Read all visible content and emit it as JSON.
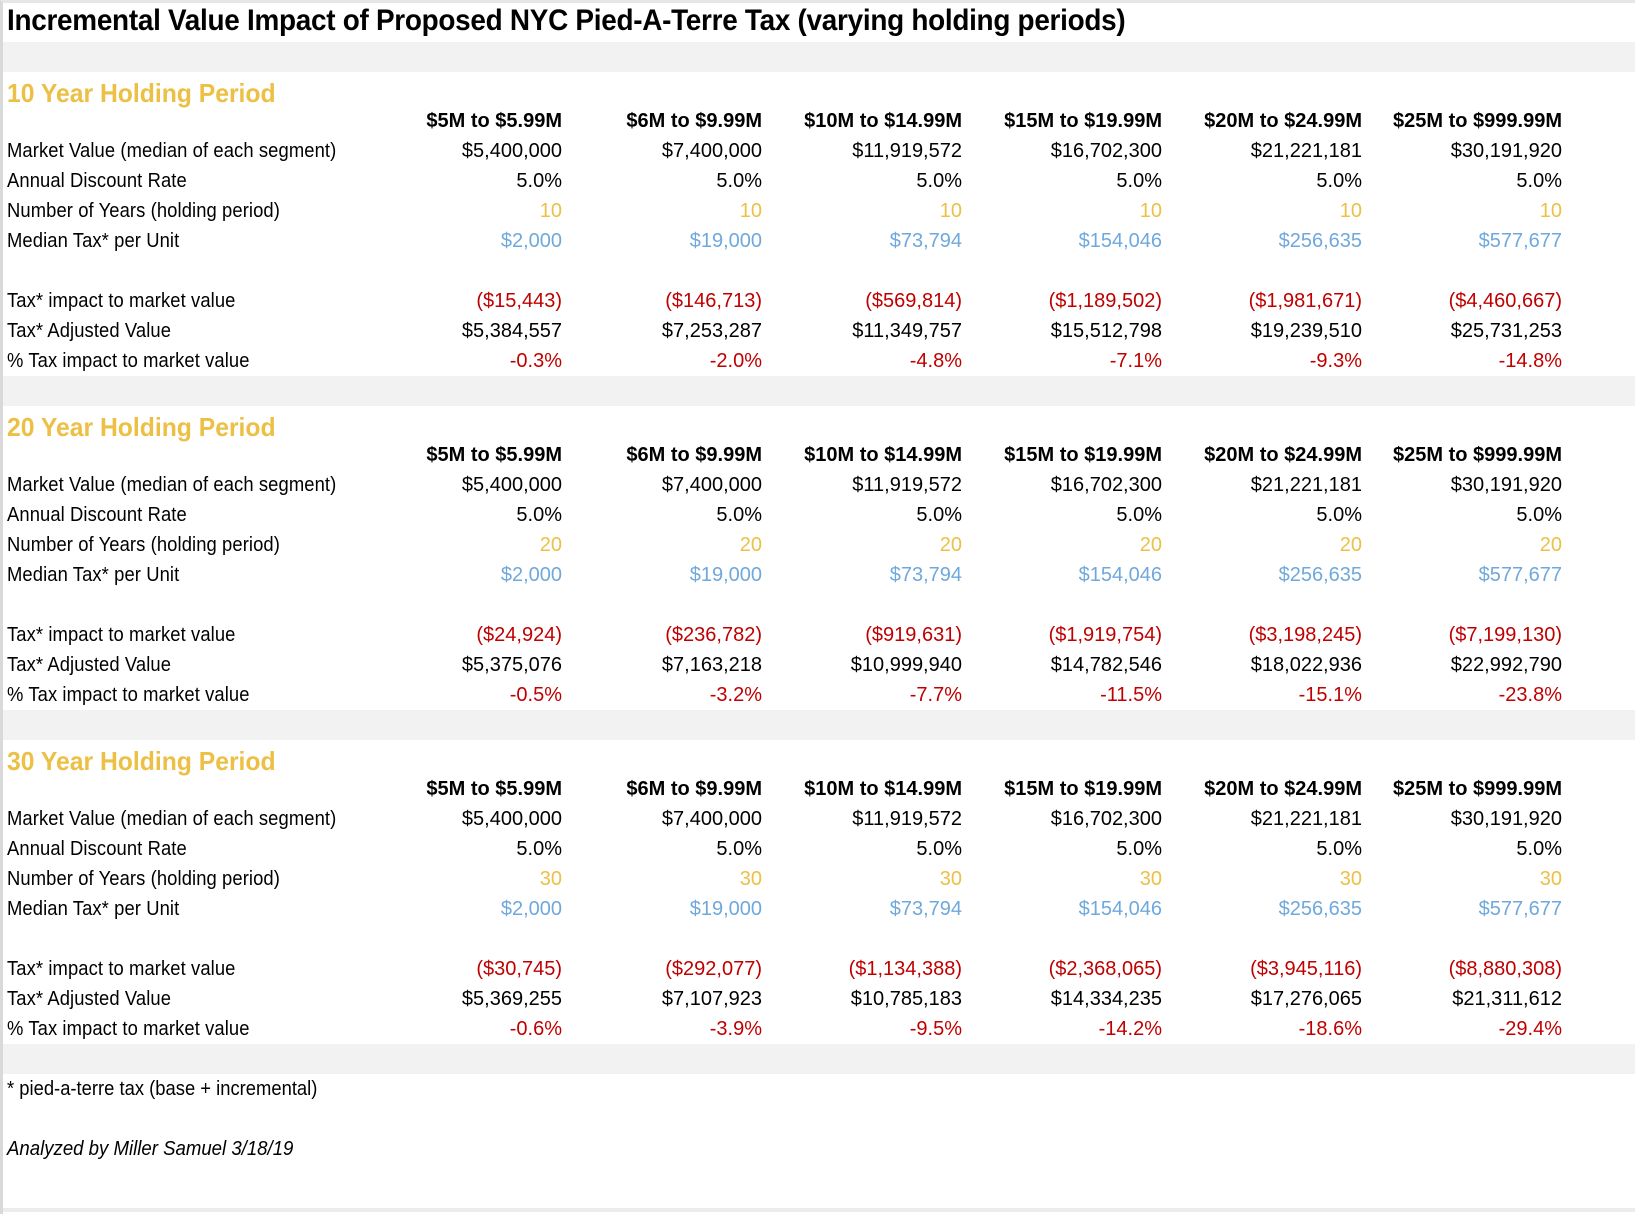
{
  "title": "Incremental Value Impact of Proposed NYC Pied-A-Terre Tax (varying holding periods)",
  "columns": [
    "$5M to $5.99M",
    "$6M to $9.99M",
    "$10M to $14.99M",
    "$15M to $19.99M",
    "$20M to $24.99M",
    "$25M to $999.99M"
  ],
  "row_labels": {
    "market_value": "Market Value (median of each segment)",
    "discount_rate": "Annual Discount Rate",
    "years": "Number of Years (holding period)",
    "median_tax": "Median Tax* per Unit",
    "tax_impact": "Tax* impact to market value",
    "adjusted_value": "Tax* Adjusted Value",
    "pct_impact": "% Tax impact to market value"
  },
  "colors": {
    "section_title": "#ecc045",
    "years": "#ecc045",
    "median_tax": "#6fa8dc",
    "negative": "#c00000",
    "band": "#f2f2f2"
  },
  "sections": [
    {
      "title": "10 Year Holding Period",
      "market_value": [
        "$5,400,000",
        "$7,400,000",
        "$11,919,572",
        "$16,702,300",
        "$21,221,181",
        "$30,191,920"
      ],
      "discount_rate": [
        "5.0%",
        "5.0%",
        "5.0%",
        "5.0%",
        "5.0%",
        "5.0%"
      ],
      "years": [
        "10",
        "10",
        "10",
        "10",
        "10",
        "10"
      ],
      "median_tax": [
        "$2,000",
        "$19,000",
        "$73,794",
        "$154,046",
        "$256,635",
        "$577,677"
      ],
      "tax_impact": [
        "($15,443)",
        "($146,713)",
        "($569,814)",
        "($1,189,502)",
        "($1,981,671)",
        "($4,460,667)"
      ],
      "adjusted_value": [
        "$5,384,557",
        "$7,253,287",
        "$11,349,757",
        "$15,512,798",
        "$19,239,510",
        "$25,731,253"
      ],
      "pct_impact": [
        "-0.3%",
        "-2.0%",
        "-4.8%",
        "-7.1%",
        "-9.3%",
        "-14.8%"
      ]
    },
    {
      "title": "20 Year Holding Period",
      "market_value": [
        "$5,400,000",
        "$7,400,000",
        "$11,919,572",
        "$16,702,300",
        "$21,221,181",
        "$30,191,920"
      ],
      "discount_rate": [
        "5.0%",
        "5.0%",
        "5.0%",
        "5.0%",
        "5.0%",
        "5.0%"
      ],
      "years": [
        "20",
        "20",
        "20",
        "20",
        "20",
        "20"
      ],
      "median_tax": [
        "$2,000",
        "$19,000",
        "$73,794",
        "$154,046",
        "$256,635",
        "$577,677"
      ],
      "tax_impact": [
        "($24,924)",
        "($236,782)",
        "($919,631)",
        "($1,919,754)",
        "($3,198,245)",
        "($7,199,130)"
      ],
      "adjusted_value": [
        "$5,375,076",
        "$7,163,218",
        "$10,999,940",
        "$14,782,546",
        "$18,022,936",
        "$22,992,790"
      ],
      "pct_impact": [
        "-0.5%",
        "-3.2%",
        "-7.7%",
        "-11.5%",
        "-15.1%",
        "-23.8%"
      ]
    },
    {
      "title": "30 Year Holding Period",
      "market_value": [
        "$5,400,000",
        "$7,400,000",
        "$11,919,572",
        "$16,702,300",
        "$21,221,181",
        "$30,191,920"
      ],
      "discount_rate": [
        "5.0%",
        "5.0%",
        "5.0%",
        "5.0%",
        "5.0%",
        "5.0%"
      ],
      "years": [
        "30",
        "30",
        "30",
        "30",
        "30",
        "30"
      ],
      "median_tax": [
        "$2,000",
        "$19,000",
        "$73,794",
        "$154,046",
        "$256,635",
        "$577,677"
      ],
      "tax_impact": [
        "($30,745)",
        "($292,077)",
        "($1,134,388)",
        "($2,368,065)",
        "($3,945,116)",
        "($8,880,308)"
      ],
      "adjusted_value": [
        "$5,369,255",
        "$7,107,923",
        "$10,785,183",
        "$14,334,235",
        "$17,276,065",
        "$21,311,612"
      ],
      "pct_impact": [
        "-0.6%",
        "-3.9%",
        "-9.5%",
        "-14.2%",
        "-18.6%",
        "-29.4%"
      ]
    }
  ],
  "footnote": "* pied-a-terre tax (base + incremental)",
  "analyzed_by": "Analyzed by Miller Samuel 3/18/19"
}
